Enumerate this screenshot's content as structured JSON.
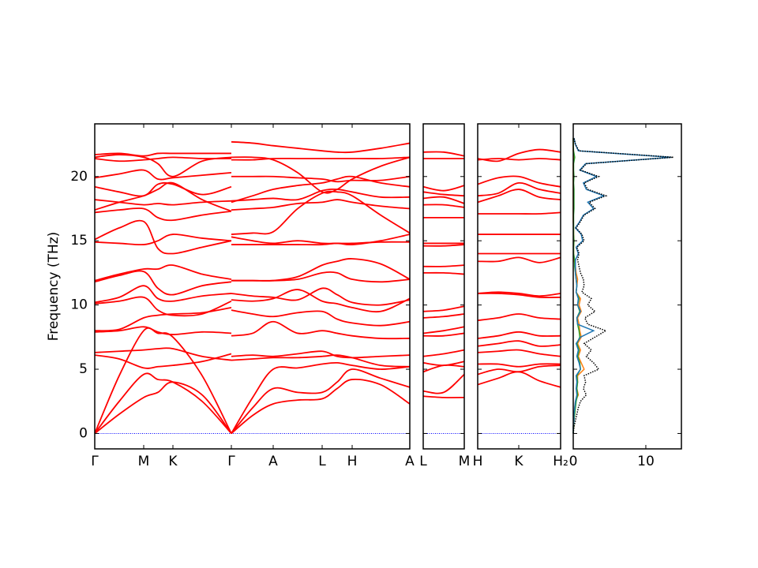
{
  "chart_data": [
    {
      "type": "line",
      "ylabel": "Frequency (THz)",
      "color": "#ff0000",
      "x": [
        0,
        0.31,
        0.62,
        0.8,
        0.99,
        1.36,
        1.73,
        1.73,
        2.0,
        2.26,
        2.57,
        2.88,
        3.07,
        3.26,
        3.62,
        3.99
      ],
      "xlim": [
        0,
        3.99
      ],
      "xticks": [
        {
          "value": 0,
          "label": "Γ"
        },
        {
          "value": 0.62,
          "label": "M"
        },
        {
          "value": 0.99,
          "label": "K"
        },
        {
          "value": 1.73,
          "label": "Γ"
        },
        {
          "value": 2.26,
          "label": "A"
        },
        {
          "value": 2.88,
          "label": "L"
        },
        {
          "value": 3.26,
          "label": "H"
        },
        {
          "value": 3.99,
          "label": "A"
        }
      ],
      "ylim": [
        -1.2,
        24.1
      ],
      "yticks": [
        0,
        5,
        10,
        15,
        20
      ],
      "series": [
        {
          "values": [
            0,
            1.5,
            2.8,
            3.2,
            4.0,
            3.0,
            0,
            0,
            1.4,
            2.3,
            2.6,
            2.7,
            3.5,
            4.2,
            3.8,
            2.3
          ]
        },
        {
          "values": [
            0,
            2.5,
            4.6,
            4.2,
            4.0,
            2.5,
            0,
            0,
            2.0,
            3.5,
            3.2,
            3.2,
            4.0,
            5.0,
            4.3,
            3.6
          ]
        },
        {
          "values": [
            0,
            4.5,
            8.0,
            7.8,
            7.5,
            4.5,
            0,
            0,
            2.8,
            5.0,
            5.1,
            5.4,
            5.5,
            5.3,
            5.0,
            5.2
          ]
        },
        {
          "values": [
            6.1,
            5.8,
            5.1,
            5.2,
            5.3,
            5.6,
            6.2,
            5.7,
            5.8,
            5.9,
            5.9,
            6.0,
            6.1,
            5.9,
            5.3,
            5.2
          ]
        },
        {
          "values": [
            6.3,
            6.4,
            6.5,
            6.6,
            6.6,
            6.0,
            5.7,
            6.0,
            6.1,
            6.0,
            6.2,
            6.4,
            6.0,
            5.9,
            6.0,
            6.1
          ]
        },
        {
          "values": [
            7.9,
            8.0,
            8.3,
            7.9,
            7.7,
            7.9,
            7.8,
            7.6,
            7.8,
            8.7,
            7.8,
            8.0,
            7.8,
            7.6,
            7.4,
            7.4
          ]
        },
        {
          "values": [
            8.0,
            8.1,
            9.0,
            9.2,
            9.3,
            9.4,
            9.8,
            9.6,
            9.3,
            9.1,
            9.4,
            9.5,
            8.9,
            8.6,
            8.4,
            8.7
          ]
        },
        {
          "values": [
            10.1,
            10.3,
            10.6,
            9.6,
            9.2,
            9.3,
            10.3,
            10.4,
            10.3,
            10.5,
            11.2,
            10.3,
            10.1,
            9.8,
            9.5,
            10.5
          ]
        },
        {
          "values": [
            10.2,
            10.6,
            11.5,
            10.5,
            10.3,
            10.7,
            10.9,
            10.9,
            10.7,
            10.6,
            10.4,
            11.3,
            10.8,
            10.2,
            10.0,
            10.4
          ]
        },
        {
          "values": [
            11.8,
            12.3,
            12.6,
            11.3,
            10.8,
            11.5,
            11.8,
            11.9,
            11.9,
            11.9,
            12.0,
            12.5,
            12.5,
            12.0,
            11.8,
            12.0
          ]
        },
        {
          "values": [
            11.9,
            12.4,
            12.8,
            12.8,
            13.1,
            12.4,
            12.0,
            11.9,
            11.9,
            11.9,
            12.2,
            13.1,
            13.4,
            13.6,
            13.2,
            12.0
          ]
        },
        {
          "values": [
            14.9,
            14.8,
            14.7,
            15.0,
            15.5,
            15.2,
            15.0,
            15.3,
            15.0,
            14.8,
            15.0,
            14.8,
            14.8,
            14.8,
            14.9,
            14.9
          ]
        },
        {
          "values": [
            15.1,
            16.0,
            16.5,
            14.4,
            14.0,
            14.5,
            15.0,
            14.7,
            14.7,
            14.7,
            14.7,
            14.7,
            14.8,
            14.7,
            15.0,
            15.5
          ]
        },
        {
          "values": [
            17.2,
            17.4,
            17.5,
            16.8,
            16.6,
            17.0,
            17.3,
            15.5,
            15.6,
            15.7,
            17.5,
            18.7,
            18.8,
            18.5,
            17.0,
            15.6
          ]
        },
        {
          "values": [
            17.4,
            18.0,
            18.5,
            19.0,
            19.5,
            18.2,
            17.3,
            17.4,
            17.5,
            17.6,
            17.9,
            18.0,
            18.2,
            18.0,
            17.7,
            17.5
          ]
        },
        {
          "values": [
            18.2,
            18.0,
            17.8,
            17.9,
            17.8,
            18.0,
            18.1,
            18.1,
            18.2,
            18.3,
            18.2,
            18.9,
            19.0,
            18.8,
            18.4,
            18.4
          ]
        },
        {
          "values": [
            19.2,
            18.8,
            18.5,
            19.4,
            19.4,
            18.6,
            19.2,
            18.0,
            18.5,
            19.0,
            19.3,
            19.5,
            19.8,
            20.0,
            19.5,
            19.2
          ]
        },
        {
          "values": [
            19.9,
            20.2,
            20.5,
            19.8,
            19.9,
            20.1,
            20.3,
            20.0,
            20.0,
            20.0,
            19.9,
            19.8,
            19.6,
            19.7,
            19.7,
            20.0
          ]
        },
        {
          "values": [
            21.4,
            21.2,
            21.3,
            21.4,
            21.5,
            21.4,
            21.4,
            21.3,
            21.3,
            21.4,
            21.4,
            21.4,
            21.4,
            21.4,
            21.4,
            21.5
          ]
        },
        {
          "values": [
            21.5,
            21.7,
            21.5,
            21.0,
            20.0,
            21.2,
            21.5,
            21.5,
            21.5,
            21.3,
            20.3,
            18.8,
            19.0,
            19.8,
            20.8,
            21.5
          ]
        },
        {
          "values": [
            21.7,
            21.8,
            21.6,
            21.8,
            21.8,
            21.8,
            21.8,
            22.7,
            22.6,
            22.4,
            22.2,
            22.0,
            21.9,
            21.9,
            22.2,
            22.6
          ]
        }
      ]
    },
    {
      "type": "line",
      "color": "#ff0000",
      "x": [
        0,
        0.26,
        0.52
      ],
      "xlim": [
        0,
        0.52
      ],
      "xticks": [
        {
          "value": 0,
          "label": "L"
        },
        {
          "value": 0.52,
          "label": "M"
        }
      ],
      "series": [
        {
          "values": [
            2.9,
            2.8,
            2.8
          ]
        },
        {
          "values": [
            3.3,
            3.2,
            4.6
          ]
        },
        {
          "values": [
            4.8,
            5.3,
            5.2
          ]
        },
        {
          "values": [
            5.5,
            5.3,
            5.6
          ]
        },
        {
          "values": [
            6.0,
            6.2,
            6.5
          ]
        },
        {
          "values": [
            7.6,
            7.6,
            7.8
          ]
        },
        {
          "values": [
            7.8,
            8.0,
            8.3
          ]
        },
        {
          "values": [
            9.0,
            9.1,
            9.3
          ]
        },
        {
          "values": [
            9.5,
            9.6,
            9.9
          ]
        },
        {
          "values": [
            12.5,
            12.5,
            12.4
          ]
        },
        {
          "values": [
            13.0,
            13.0,
            13.1
          ]
        },
        {
          "values": [
            14.6,
            14.6,
            14.7
          ]
        },
        {
          "values": [
            14.8,
            14.8,
            14.8
          ]
        },
        {
          "values": [
            16.8,
            16.8,
            16.8
          ]
        },
        {
          "values": [
            17.8,
            17.8,
            17.6
          ]
        },
        {
          "values": [
            18.3,
            18.4,
            17.9
          ]
        },
        {
          "values": [
            18.8,
            18.6,
            18.5
          ]
        },
        {
          "values": [
            19.2,
            18.9,
            19.3
          ]
        },
        {
          "values": [
            21.4,
            21.4,
            21.4
          ]
        },
        {
          "values": [
            21.9,
            21.9,
            21.6
          ]
        }
      ]
    },
    {
      "type": "line",
      "color": "#ff0000",
      "x": [
        0,
        0.26,
        0.52,
        0.78,
        1.05
      ],
      "xlim": [
        0,
        1.05
      ],
      "xticks": [
        {
          "value": 0,
          "label": "H"
        },
        {
          "value": 0.52,
          "label": "K"
        },
        {
          "value": 1.05,
          "label": "H₂"
        }
      ],
      "series": [
        {
          "values": [
            3.8,
            4.3,
            4.8,
            4.1,
            3.6
          ]
        },
        {
          "values": [
            4.6,
            5.0,
            4.8,
            5.2,
            5.3
          ]
        },
        {
          "values": [
            5.4,
            5.4,
            5.2,
            5.4,
            5.4
          ]
        },
        {
          "values": [
            6.3,
            6.4,
            6.5,
            6.2,
            6.0
          ]
        },
        {
          "values": [
            6.8,
            7.0,
            7.2,
            6.8,
            6.9
          ]
        },
        {
          "values": [
            7.4,
            7.6,
            7.9,
            7.6,
            7.6
          ]
        },
        {
          "values": [
            8.8,
            9.0,
            9.3,
            9.0,
            8.9
          ]
        },
        {
          "values": [
            10.9,
            11.0,
            10.9,
            10.7,
            10.9
          ]
        },
        {
          "values": [
            10.9,
            10.9,
            10.8,
            10.6,
            10.6
          ]
        },
        {
          "values": [
            13.4,
            13.4,
            13.7,
            13.3,
            13.7
          ]
        },
        {
          "values": [
            14.0,
            14.0,
            14.0,
            14.0,
            14.0
          ]
        },
        {
          "values": [
            15.5,
            15.5,
            15.5,
            15.5,
            15.5
          ]
        },
        {
          "values": [
            17.1,
            17.1,
            17.1,
            17.1,
            17.2
          ]
        },
        {
          "values": [
            18.0,
            18.5,
            19.0,
            18.4,
            18.2
          ]
        },
        {
          "values": [
            18.5,
            18.7,
            19.5,
            19.0,
            18.7
          ]
        },
        {
          "values": [
            19.4,
            19.9,
            20.0,
            19.5,
            19.2
          ]
        },
        {
          "values": [
            21.3,
            21.4,
            21.3,
            21.4,
            21.3
          ]
        },
        {
          "values": [
            21.4,
            21.2,
            21.8,
            22.1,
            21.9
          ]
        }
      ]
    },
    {
      "type": "dos",
      "xlim": [
        0,
        14.9
      ],
      "xticks": [
        0,
        10
      ],
      "y": [
        0,
        0.5,
        1,
        1.5,
        2,
        2.5,
        3,
        3.5,
        4,
        4.5,
        5,
        5.5,
        6,
        6.5,
        7,
        7.5,
        8,
        8.5,
        9,
        9.5,
        10,
        10.5,
        11,
        11.5,
        12,
        12.5,
        13,
        13.5,
        14,
        14.5,
        15,
        15.5,
        16,
        16.5,
        17,
        17.5,
        18,
        18.5,
        19,
        19.5,
        20,
        20.5,
        21,
        21.5,
        22,
        22.5,
        23
      ],
      "series": [
        {
          "color": "#ff7f0e",
          "values": [
            0,
            0.05,
            0.1,
            0.2,
            0.2,
            0.3,
            0.7,
            0.5,
            0.6,
            0.6,
            1.5,
            1.1,
            0.7,
            1.0,
            0.6,
            1.1,
            0.9,
            0.8,
            0.6,
            1.1,
            0.8,
            1.0,
            0.4,
            0.5,
            0.6,
            0.4,
            0.3,
            0.1,
            0.05,
            0.05,
            0.1,
            0.05,
            0.05,
            0,
            0,
            0,
            0,
            0,
            0,
            0,
            0,
            0,
            0,
            0.1,
            0,
            0,
            0
          ]
        },
        {
          "color": "#2ca02c",
          "values": [
            0,
            0.05,
            0.1,
            0.2,
            0.3,
            0.4,
            0.6,
            0.5,
            0.6,
            0.5,
            1.0,
            0.9,
            0.6,
            0.8,
            0.5,
            0.9,
            0.8,
            0.6,
            0.5,
            0.9,
            0.6,
            0.8,
            0.4,
            0.5,
            0.4,
            0.3,
            0.2,
            0.2,
            0.05,
            0.05,
            0.1,
            0.05,
            0.05,
            0.05,
            0.05,
            0.1,
            0.1,
            0.1,
            0.1,
            0.05,
            0.1,
            0.05,
            0.05,
            0.2,
            0.05,
            0,
            0
          ]
        },
        {
          "color": "#1f77b4",
          "values": [
            0,
            0,
            0.1,
            0.1,
            0.2,
            0.3,
            0.5,
            0.4,
            0.5,
            0.4,
            1.0,
            0.8,
            0.5,
            0.7,
            0.4,
            1.0,
            2.8,
            0.6,
            0.5,
            1.0,
            0.6,
            0.7,
            0.4,
            0.5,
            0.4,
            0.3,
            0.3,
            0.3,
            0.7,
            0.4,
            1.3,
            1.1,
            0.3,
            0.9,
            1.4,
            2.8,
            2.0,
            4.2,
            1.8,
            1.4,
            3.2,
            0.9,
            1.7,
            13.5,
            0.7,
            0.3,
            0.1
          ]
        },
        {
          "color": "#000000",
          "dotted": true,
          "values": [
            0,
            0.1,
            0.3,
            0.5,
            0.7,
            1.0,
            1.8,
            1.4,
            1.7,
            1.5,
            3.5,
            2.8,
            1.8,
            2.5,
            1.5,
            3.0,
            4.5,
            2.0,
            1.6,
            3.0,
            2.0,
            2.5,
            1.2,
            1.5,
            1.4,
            1.0,
            0.8,
            0.6,
            0.8,
            0.5,
            1.5,
            1.2,
            0.4,
            1.0,
            1.5,
            3.0,
            2.2,
            4.5,
            2.0,
            1.5,
            3.5,
            1.0,
            1.8,
            13.8,
            0.8,
            0.3,
            0.1
          ]
        }
      ]
    }
  ]
}
